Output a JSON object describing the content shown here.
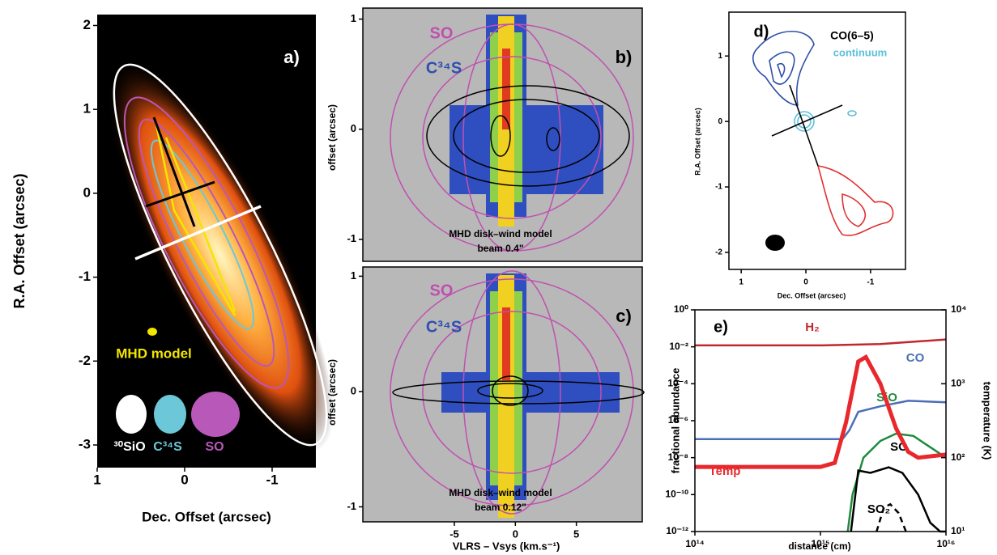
{
  "chart_data": [
    {
      "type": "image",
      "y_label": "R.A. Offset (arcsec)",
      "x_label": "Dec. Offset (arcsec)",
      "xlim": [
        1,
        -1.5
      ],
      "ylim": [
        -3.27,
        2.13
      ],
      "xticks": [
        1,
        0,
        -1
      ],
      "yticks": [
        2,
        1,
        0,
        -1,
        -2,
        -3
      ],
      "annotations": [
        {
          "text": "a)",
          "color": "#ffffff"
        },
        {
          "text": "MHD model",
          "color": "#f2e600"
        },
        {
          "text": "³⁰SiO",
          "color": "#ffffff"
        },
        {
          "text": "C³⁴S",
          "color": "#6cc8d8"
        },
        {
          "text": "SO",
          "color": "#b858b8"
        }
      ]
    },
    {
      "type": "image",
      "y_label": "offset (arcsec)",
      "xlim": [
        -12.5,
        10.4
      ],
      "ylim": [
        -1.2,
        1.1
      ],
      "yticks": [
        1,
        0,
        -1
      ],
      "annotations": [
        {
          "text": "SO",
          "color": "#c050b0"
        },
        {
          "text": "C³⁴S",
          "color": "#3050b0"
        },
        {
          "text": "b)",
          "color": "#000000"
        },
        {
          "text": "MHD disk–wind model",
          "color": "#000000"
        },
        {
          "text": "beam 0.4\"",
          "color": "#000000"
        }
      ]
    },
    {
      "type": "image",
      "y_label": "offset (arcsec)",
      "x_label": "VLRS – Vsys (km.s⁻¹)",
      "xlim": [
        -12.5,
        10.4
      ],
      "ylim": [
        -1.13,
        1.08
      ],
      "xticks": [
        -5,
        0,
        5
      ],
      "yticks": [
        1,
        0,
        -1
      ],
      "annotations": [
        {
          "text": "SO",
          "color": "#c050b0"
        },
        {
          "text": "C³⁴S",
          "color": "#3050b0"
        },
        {
          "text": "c)",
          "color": "#000000"
        },
        {
          "text": "MHD disk–wind model",
          "color": "#000000"
        },
        {
          "text": "beam 0.12\"",
          "color": "#000000"
        }
      ]
    },
    {
      "type": "image",
      "y_label": "R.A. Offset (arcsec)",
      "x_label": "Dec. Offset (arcsec)",
      "xlim": [
        1.19,
        -1.54
      ],
      "ylim": [
        -2.26,
        1.67
      ],
      "xticks": [
        1,
        0,
        -1
      ],
      "yticks": [
        1,
        0,
        -1,
        -2
      ],
      "annotations": [
        {
          "text": "d)",
          "color": "#000000"
        },
        {
          "text": "CO(6–5)",
          "color": "#000000"
        },
        {
          "text": "continuum",
          "color": "#5cc0d8"
        }
      ]
    },
    {
      "type": "line",
      "y_label": "fractional abundance",
      "y2_label": "temperature (K)",
      "x_label": "distance (cm)",
      "log_x": true,
      "log_y": true,
      "xlim": [
        100000000000000.0,
        1e+16
      ],
      "ylim": [
        1e-12,
        1
      ],
      "y2lim": [
        10,
        10000
      ],
      "xticks": [
        {
          "value": 100000000000000.0,
          "label": "10¹⁴"
        },
        {
          "value": 1000000000000000.0,
          "label": "10¹⁵"
        },
        {
          "value": 1e+16,
          "label": "10¹⁶"
        }
      ],
      "yticks": [
        {
          "value": 1,
          "label": "10⁰"
        },
        {
          "value": 0.01,
          "label": "10⁻²"
        },
        {
          "value": 0.0001,
          "label": "10⁻⁴"
        },
        {
          "value": 1e-06,
          "label": "10⁻⁶"
        },
        {
          "value": 1e-08,
          "label": "10⁻⁸"
        },
        {
          "value": 1e-10,
          "label": "10⁻¹⁰"
        },
        {
          "value": 1e-12,
          "label": "10⁻¹²"
        }
      ],
      "y2ticks": [
        {
          "value": 10,
          "label": "10¹"
        },
        {
          "value": 100,
          "label": "10²"
        },
        {
          "value": 1000,
          "label": "10³"
        },
        {
          "value": 10000,
          "label": "10⁴"
        }
      ],
      "annotations": [
        {
          "text": "e)",
          "color": "#000000"
        }
      ],
      "series": [
        {
          "name": "H₂",
          "color": "#c0282d",
          "x": [
            100000000000000.0,
            1000000000000000.0,
            3000000000000000.0,
            1e+16
          ],
          "values": [
            0.012,
            0.012,
            0.014,
            0.025
          ]
        },
        {
          "name": "CO",
          "color": "#4a6fb5",
          "x": [
            100000000000000.0,
            1500000000000000.0,
            1700000000000000.0,
            2000000000000000.0,
            3000000000000000.0,
            5000000000000000.0,
            1e+16
          ],
          "values": [
            1e-07,
            1e-07,
            3e-07,
            3e-06,
            6e-06,
            1.2e-05,
            1e-05
          ]
        },
        {
          "name": "SiO",
          "color": "#1f8a3c",
          "x": [
            1650000000000000.0,
            1800000000000000.0,
            2200000000000000.0,
            3000000000000000.0,
            4000000000000000.0,
            5500000000000000.0,
            7000000000000000.0,
            1e+16
          ],
          "values": [
            1e-12,
            1e-10,
            1e-08,
            8e-08,
            2e-07,
            1.5e-07,
            5e-08,
            1e-08
          ]
        },
        {
          "name": "SO",
          "color": "#000000",
          "x": [
            1750000000000000.0,
            2000000000000000.0,
            2500000000000000.0,
            3500000000000000.0,
            4500000000000000.0,
            6000000000000000.0,
            7500000000000000.0,
            9000000000000000.0,
            1e+16
          ],
          "values": [
            1e-12,
            2e-09,
            1.5e-09,
            3e-09,
            1.5e-09,
            1e-10,
            3e-12,
            1e-12,
            1e-12
          ]
        },
        {
          "name": "SO₂",
          "color": "#000000",
          "dash": true,
          "x": [
            2800000000000000.0,
            3200000000000000.0,
            3600000000000000.0,
            4200000000000000.0,
            4800000000000000.0
          ],
          "values": [
            1e-12,
            2e-11,
            3e-11,
            1e-11,
            1e-12
          ]
        },
        {
          "name": "Temp",
          "color": "#e8282d",
          "axis": "y2",
          "x": [
            100000000000000.0,
            1000000000000000.0,
            1300000000000000.0,
            1600000000000000.0,
            2000000000000000.0,
            2300000000000000.0,
            3000000000000000.0,
            4000000000000000.0,
            5000000000000000.0,
            6000000000000000.0,
            1e+16
          ],
          "values": [
            75,
            75,
            85,
            300,
            2000,
            2300,
            1000,
            250,
            120,
            100,
            110
          ]
        }
      ]
    }
  ]
}
